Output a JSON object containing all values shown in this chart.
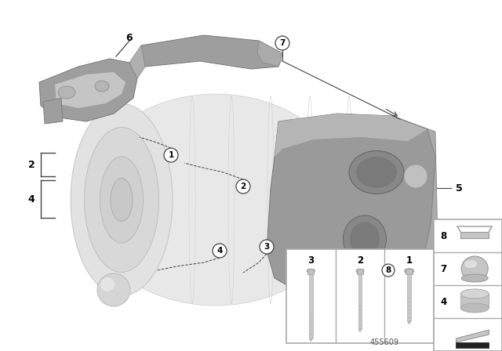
{
  "bg_color": "#ffffff",
  "lc": "#444444",
  "part_id": "455609",
  "transmission_color": "#e0e0e0",
  "bracket_dark": "#909090",
  "bracket_mid": "#b0b0b0",
  "bracket_light": "#c8c8c8"
}
